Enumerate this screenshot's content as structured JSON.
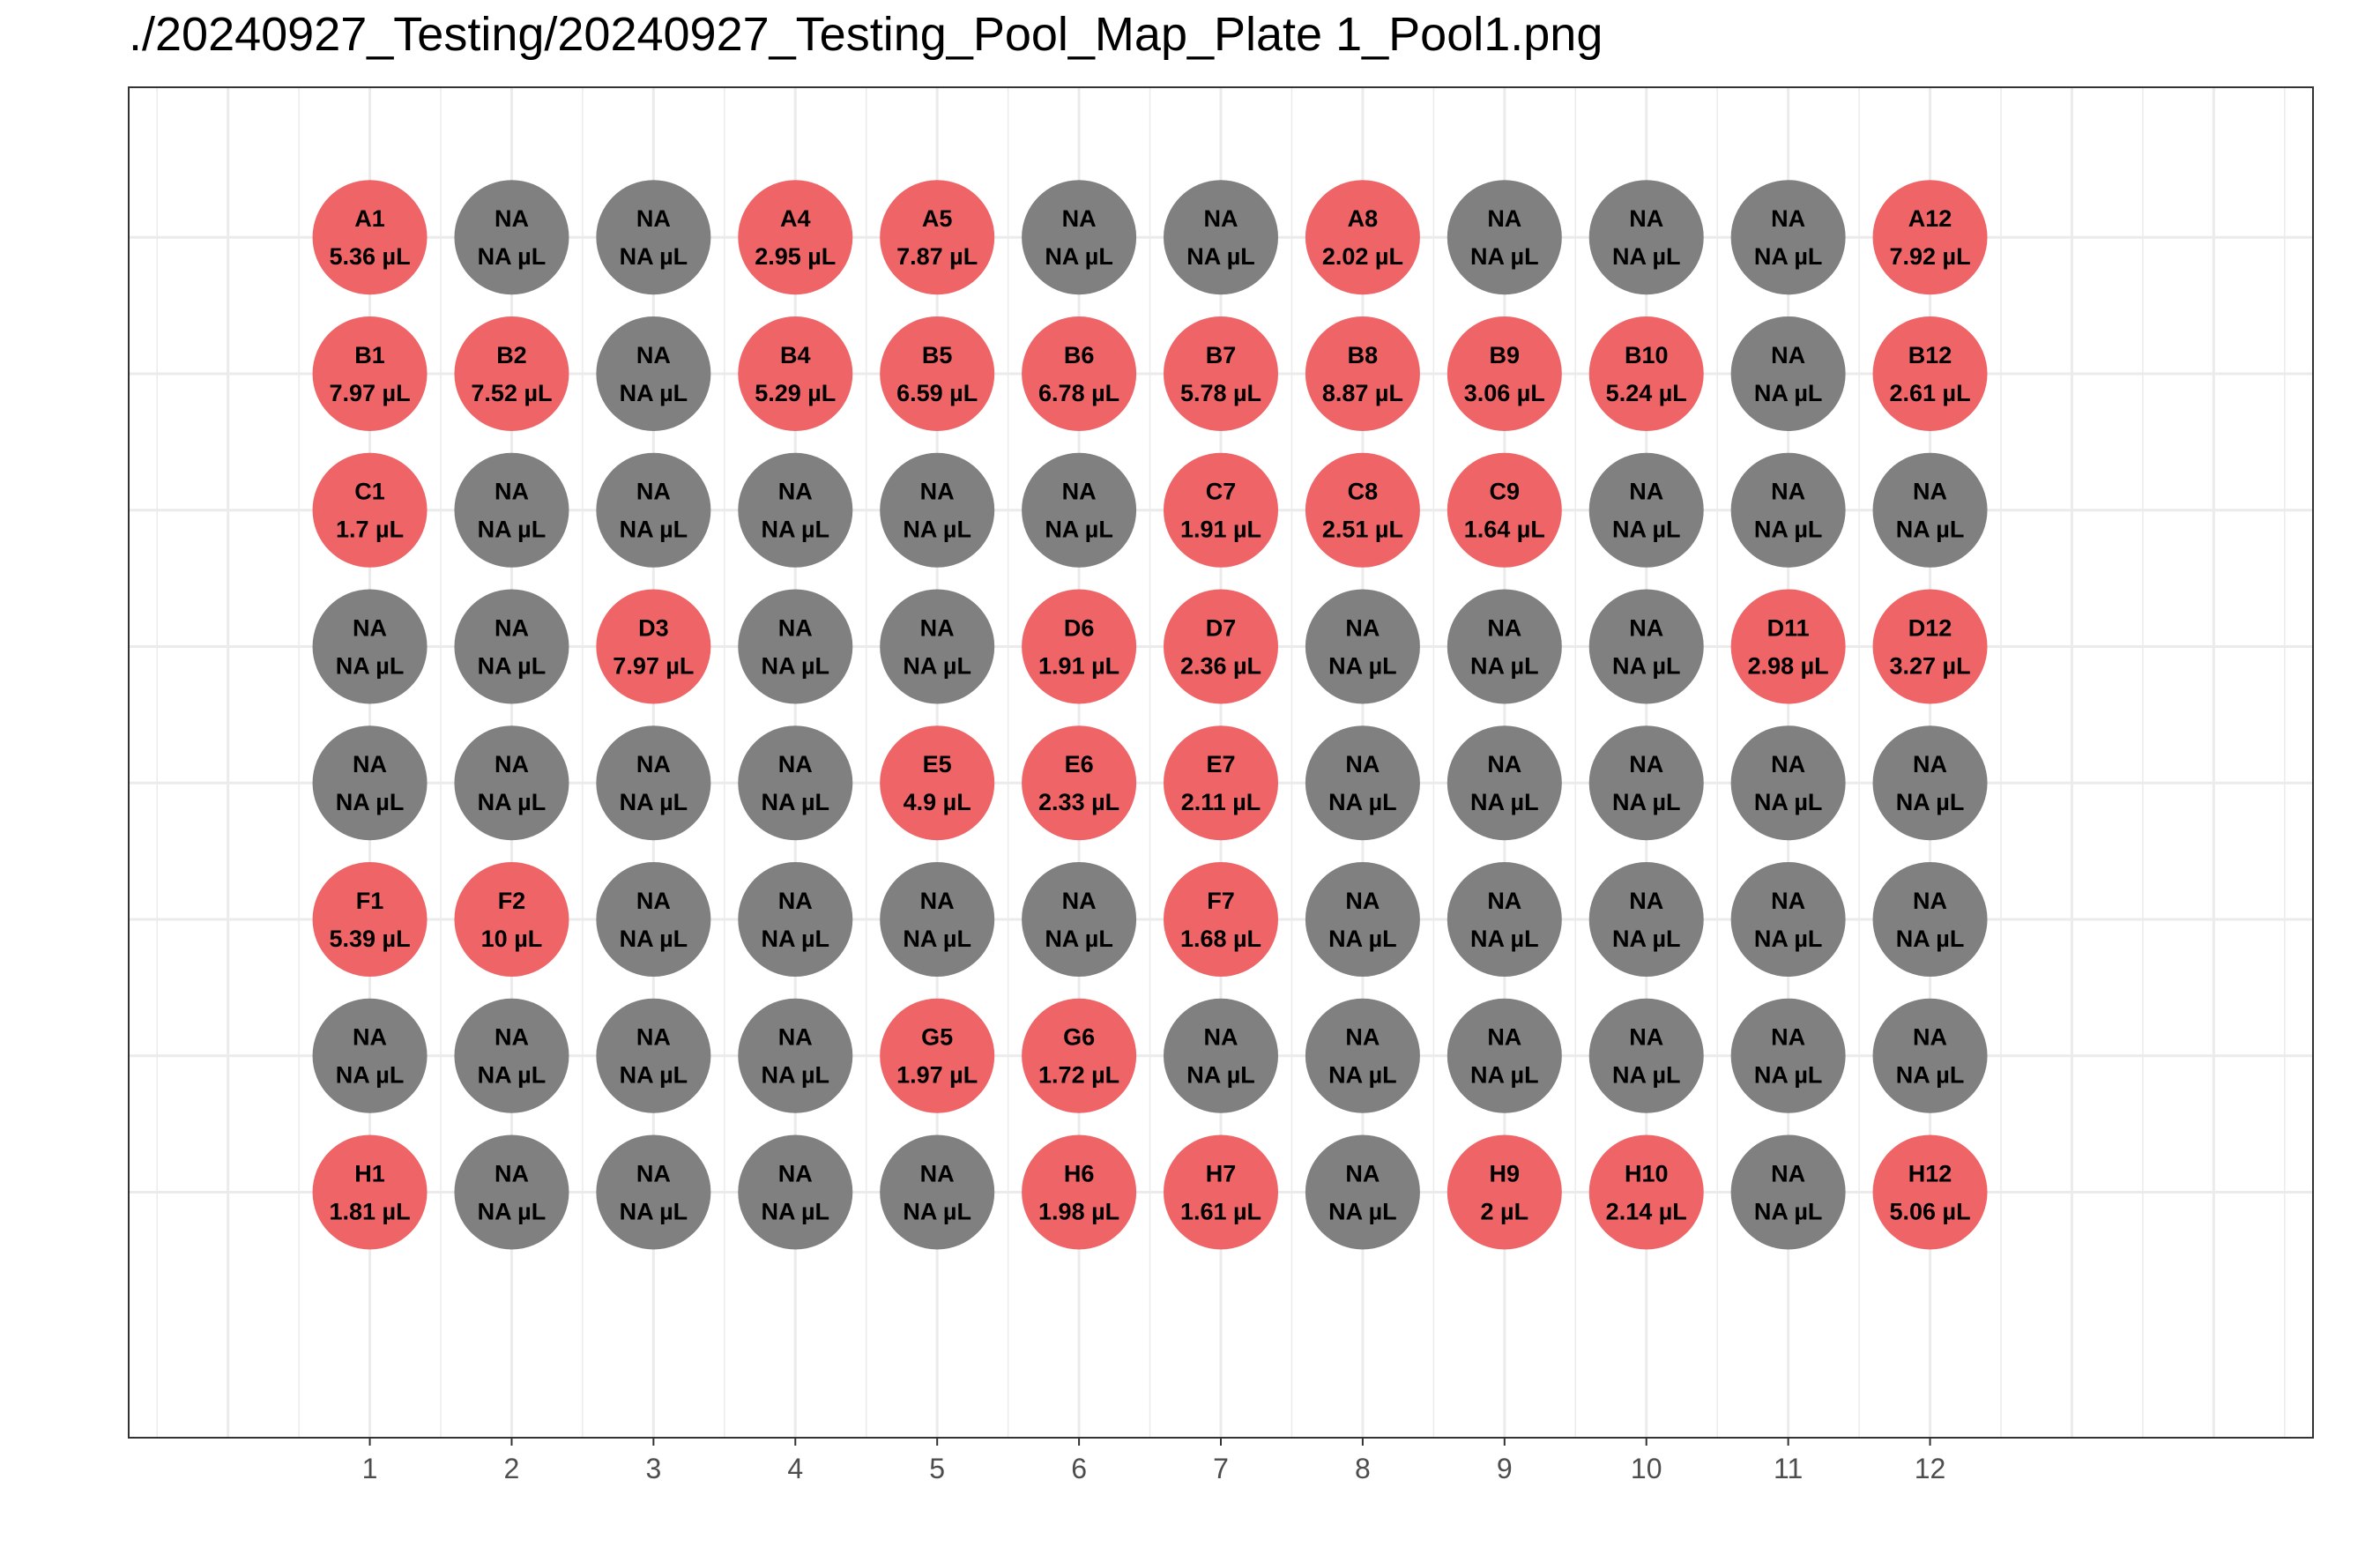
{
  "page": {
    "title": "./20240927_Testing/20240927_Testing_Pool_Map_Plate 1_Pool1.png"
  },
  "colors": {
    "active": "#ef6567",
    "inactive": "#808080",
    "grid": "#ebebeb",
    "border": "#333333",
    "tick": "#4d4d4d"
  },
  "chart_data": {
    "type": "scatter",
    "title": "./20240927_Testing/20240927_Testing_Pool_Map_Plate 1_Pool1.png",
    "xlabel": "",
    "ylabel": "",
    "xlim": [
      -0.7,
      14.7
    ],
    "ylim": [
      0.2,
      10.1
    ],
    "grid": true,
    "x_ticks": [
      "1",
      "2",
      "3",
      "4",
      "5",
      "6",
      "7",
      "8",
      "9",
      "10",
      "11",
      "12"
    ],
    "unit": "µL",
    "rows": [
      "A",
      "B",
      "C",
      "D",
      "E",
      "F",
      "G",
      "H"
    ],
    "wells": [
      [
        "A1",
        "5.36 µL"
      ],
      [
        "NA",
        "NA µL"
      ],
      [
        "NA",
        "NA µL"
      ],
      [
        "A4",
        "2.95 µL"
      ],
      [
        "A5",
        "7.87 µL"
      ],
      [
        "NA",
        "NA µL"
      ],
      [
        "NA",
        "NA µL"
      ],
      [
        "A8",
        "2.02 µL"
      ],
      [
        "NA",
        "NA µL"
      ],
      [
        "NA",
        "NA µL"
      ],
      [
        "NA",
        "NA µL"
      ],
      [
        "A12",
        "7.92 µL"
      ],
      [
        "B1",
        "7.97 µL"
      ],
      [
        "B2",
        "7.52 µL"
      ],
      [
        "NA",
        "NA µL"
      ],
      [
        "B4",
        "5.29 µL"
      ],
      [
        "B5",
        "6.59 µL"
      ],
      [
        "B6",
        "6.78 µL"
      ],
      [
        "B7",
        "5.78 µL"
      ],
      [
        "B8",
        "8.87 µL"
      ],
      [
        "B9",
        "3.06 µL"
      ],
      [
        "B10",
        "5.24 µL"
      ],
      [
        "NA",
        "NA µL"
      ],
      [
        "B12",
        "2.61 µL"
      ],
      [
        "C1",
        "1.7 µL"
      ],
      [
        "NA",
        "NA µL"
      ],
      [
        "NA",
        "NA µL"
      ],
      [
        "NA",
        "NA µL"
      ],
      [
        "NA",
        "NA µL"
      ],
      [
        "NA",
        "NA µL"
      ],
      [
        "C7",
        "1.91 µL"
      ],
      [
        "C8",
        "2.51 µL"
      ],
      [
        "C9",
        "1.64 µL"
      ],
      [
        "NA",
        "NA µL"
      ],
      [
        "NA",
        "NA µL"
      ],
      [
        "NA",
        "NA µL"
      ],
      [
        "NA",
        "NA µL"
      ],
      [
        "NA",
        "NA µL"
      ],
      [
        "D3",
        "7.97 µL"
      ],
      [
        "NA",
        "NA µL"
      ],
      [
        "NA",
        "NA µL"
      ],
      [
        "D6",
        "1.91 µL"
      ],
      [
        "D7",
        "2.36 µL"
      ],
      [
        "NA",
        "NA µL"
      ],
      [
        "NA",
        "NA µL"
      ],
      [
        "NA",
        "NA µL"
      ],
      [
        "D11",
        "2.98 µL"
      ],
      [
        "D12",
        "3.27 µL"
      ],
      [
        "NA",
        "NA µL"
      ],
      [
        "NA",
        "NA µL"
      ],
      [
        "NA",
        "NA µL"
      ],
      [
        "NA",
        "NA µL"
      ],
      [
        "E5",
        "4.9 µL"
      ],
      [
        "E6",
        "2.33 µL"
      ],
      [
        "E7",
        "2.11 µL"
      ],
      [
        "NA",
        "NA µL"
      ],
      [
        "NA",
        "NA µL"
      ],
      [
        "NA",
        "NA µL"
      ],
      [
        "NA",
        "NA µL"
      ],
      [
        "NA",
        "NA µL"
      ],
      [
        "F1",
        "5.39 µL"
      ],
      [
        "F2",
        "10 µL"
      ],
      [
        "NA",
        "NA µL"
      ],
      [
        "NA",
        "NA µL"
      ],
      [
        "NA",
        "NA µL"
      ],
      [
        "NA",
        "NA µL"
      ],
      [
        "F7",
        "1.68 µL"
      ],
      [
        "NA",
        "NA µL"
      ],
      [
        "NA",
        "NA µL"
      ],
      [
        "NA",
        "NA µL"
      ],
      [
        "NA",
        "NA µL"
      ],
      [
        "NA",
        "NA µL"
      ],
      [
        "NA",
        "NA µL"
      ],
      [
        "NA",
        "NA µL"
      ],
      [
        "NA",
        "NA µL"
      ],
      [
        "NA",
        "NA µL"
      ],
      [
        "G5",
        "1.97 µL"
      ],
      [
        "G6",
        "1.72 µL"
      ],
      [
        "NA",
        "NA µL"
      ],
      [
        "NA",
        "NA µL"
      ],
      [
        "NA",
        "NA µL"
      ],
      [
        "NA",
        "NA µL"
      ],
      [
        "NA",
        "NA µL"
      ],
      [
        "NA",
        "NA µL"
      ],
      [
        "H1",
        "1.81 µL"
      ],
      [
        "NA",
        "NA µL"
      ],
      [
        "NA",
        "NA µL"
      ],
      [
        "NA",
        "NA µL"
      ],
      [
        "NA",
        "NA µL"
      ],
      [
        "H6",
        "1.98 µL"
      ],
      [
        "H7",
        "1.61 µL"
      ],
      [
        "NA",
        "NA µL"
      ],
      [
        "H9",
        "2 µL"
      ],
      [
        "H10",
        "2.14 µL"
      ],
      [
        "NA",
        "NA µL"
      ],
      [
        "H12",
        "5.06 µL"
      ]
    ]
  }
}
